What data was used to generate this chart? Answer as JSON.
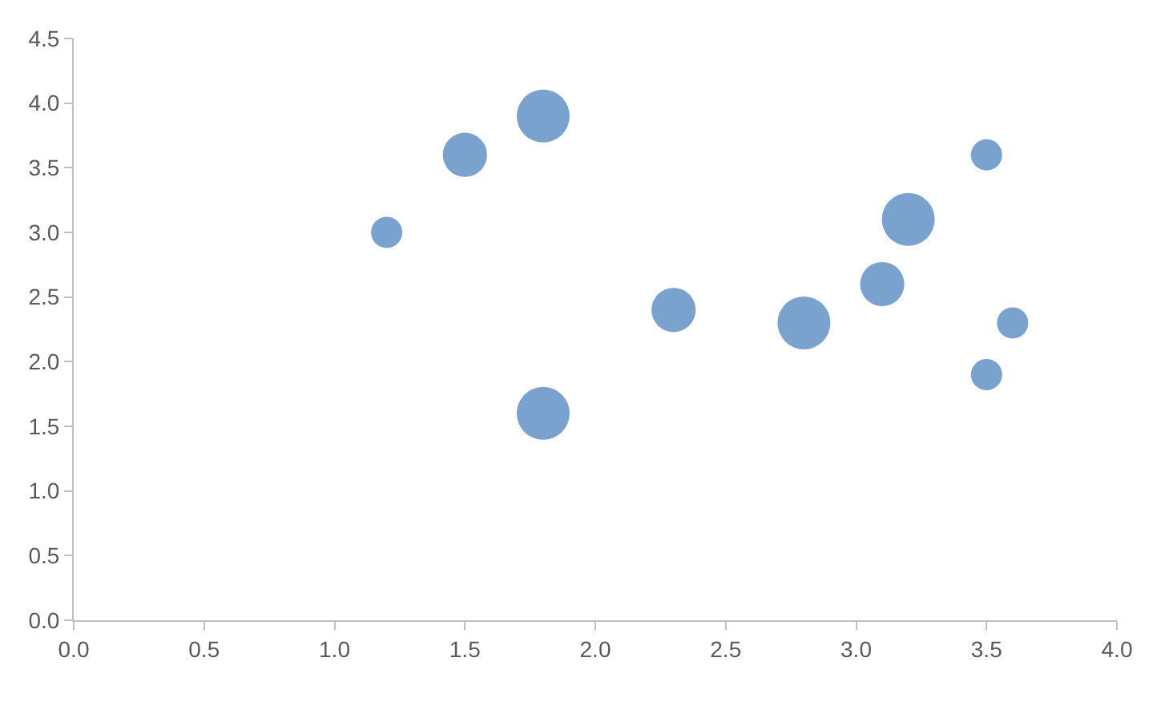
{
  "chart_data": {
    "type": "bubble",
    "color": "#7aa2cf",
    "x": [
      1.2,
      1.5,
      1.8,
      1.8,
      2.3,
      2.8,
      3.1,
      3.2,
      3.5,
      3.6,
      3.5
    ],
    "values": [
      3.0,
      3.6,
      3.9,
      1.6,
      2.4,
      2.3,
      2.6,
      3.1,
      3.6,
      2.3,
      1.9
    ],
    "sizes": [
      0.35,
      0.7,
      1,
      1,
      0.7,
      1,
      0.7,
      1,
      0.35,
      0.35,
      0.35
    ],
    "xlim": [
      0,
      4
    ],
    "xticks": [
      {
        "value": 0,
        "label": "0.0"
      },
      {
        "value": 0.5,
        "label": "0.5"
      },
      {
        "value": 1,
        "label": "1.0"
      },
      {
        "value": 1.5,
        "label": "1.5"
      },
      {
        "value": 2,
        "label": "2.0"
      },
      {
        "value": 2.5,
        "label": "2.5"
      },
      {
        "value": 3,
        "label": "3.0"
      },
      {
        "value": 3.5,
        "label": "3.5"
      },
      {
        "value": 4,
        "label": "4.0"
      }
    ],
    "ylim": [
      0,
      4.5
    ],
    "yticks": [
      {
        "value": 0,
        "label": "0.0"
      },
      {
        "value": 0.5,
        "label": "0.5"
      },
      {
        "value": 1,
        "label": "1.0"
      },
      {
        "value": 1.5,
        "label": "1.5"
      },
      {
        "value": 2,
        "label": "2.0"
      },
      {
        "value": 2.5,
        "label": "2.5"
      },
      {
        "value": 3,
        "label": "3.0"
      },
      {
        "value": 3.5,
        "label": "3.5"
      },
      {
        "value": 4,
        "label": "4.0"
      },
      {
        "value": 4.5,
        "label": "4.5"
      }
    ],
    "marker": "circle"
  }
}
